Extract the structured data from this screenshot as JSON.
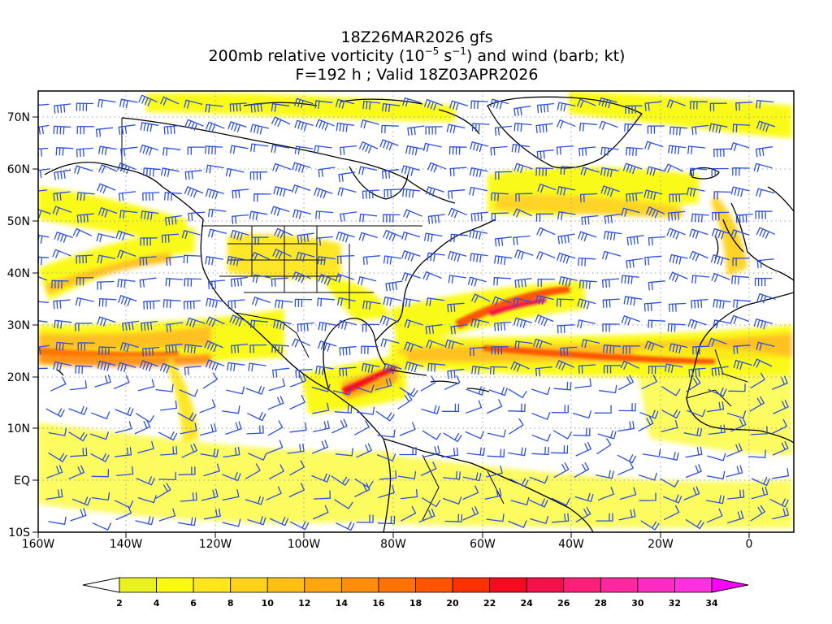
{
  "header": {
    "run": "18Z26MAR2026 gfs",
    "product_prefix": "200mb relative vorticity (10",
    "product_exp1": "−5",
    "product_mid": " s",
    "product_exp2": "−1",
    "product_suffix": ") and wind (barb; kt)",
    "valid": "F=192 h ; Valid 18Z03APR2026"
  },
  "map": {
    "lon_ticks": [
      "160W",
      "140W",
      "120W",
      "100W",
      "80W",
      "60W",
      "40W",
      "20W",
      "0"
    ],
    "lat_ticks": [
      "70N",
      "60N",
      "50N",
      "40N",
      "30N",
      "20N",
      "10N",
      "EQ",
      "10S"
    ],
    "lon_values": [
      -160,
      -140,
      -120,
      -100,
      -80,
      -60,
      -40,
      -20,
      0
    ],
    "lat_values": [
      70,
      60,
      50,
      40,
      30,
      20,
      10,
      0,
      -10
    ],
    "extent": {
      "lon_min": -160,
      "lon_max": 10,
      "lat_min": -10,
      "lat_max": 75
    },
    "barb_color": "#2b4fe0",
    "coast_color": "#000000",
    "grid_style": "dotted"
  },
  "colorbar": {
    "labels": [
      "2",
      "4",
      "6",
      "8",
      "10",
      "12",
      "14",
      "16",
      "18",
      "20",
      "22",
      "24",
      "26",
      "28",
      "30",
      "32",
      "34"
    ],
    "colors": [
      "#e9f21f",
      "#fafa10",
      "#ffe61a",
      "#ffd21a",
      "#ffbe14",
      "#ffa50f",
      "#ff8c0a",
      "#ff7305",
      "#ff5500",
      "#ff3000",
      "#f50a1e",
      "#f5104a",
      "#ff1e78",
      "#ff28a0",
      "#ff2cc4",
      "#ff30e0",
      "#ff00ff"
    ]
  }
}
